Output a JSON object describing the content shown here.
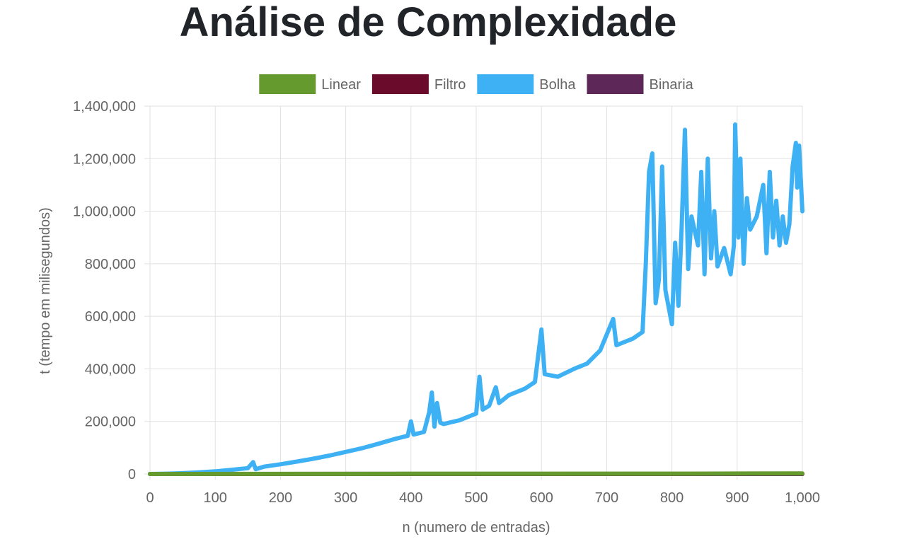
{
  "page": {
    "title": "Análise de Complexidade"
  },
  "chart_data": {
    "type": "line",
    "title": "Análise de Complexidade",
    "xlabel": "n (numero de entradas)",
    "ylabel": "t (tempo em milisegundos)",
    "xlim": [
      0,
      1000
    ],
    "ylim": [
      0,
      1400000
    ],
    "x_ticks": [
      "0",
      "100",
      "200",
      "300",
      "400",
      "500",
      "600",
      "700",
      "800",
      "900",
      "1,000"
    ],
    "y_ticks": [
      "0",
      "200,000",
      "400,000",
      "600,000",
      "800,000",
      "1,000,000",
      "1,200,000",
      "1,400,000"
    ],
    "grid": true,
    "legend_position": "top",
    "series": [
      {
        "name": "Linear",
        "color": "#659a2f",
        "points": [
          [
            0,
            0
          ],
          [
            200,
            300
          ],
          [
            400,
            600
          ],
          [
            600,
            900
          ],
          [
            800,
            1200
          ],
          [
            900,
            1500
          ],
          [
            1000,
            1800
          ]
        ]
      },
      {
        "name": "Filtro",
        "color": "#6a0b2c",
        "points": [
          [
            0,
            0
          ],
          [
            500,
            200
          ],
          [
            1000,
            400
          ]
        ]
      },
      {
        "name": "Bolha",
        "color": "#3eb1f4",
        "points": [
          [
            0,
            0
          ],
          [
            25,
            1000
          ],
          [
            50,
            3000
          ],
          [
            75,
            6000
          ],
          [
            100,
            10000
          ],
          [
            125,
            16000
          ],
          [
            150,
            22000
          ],
          [
            158,
            45000
          ],
          [
            162,
            18000
          ],
          [
            175,
            28000
          ],
          [
            200,
            37000
          ],
          [
            225,
            47000
          ],
          [
            250,
            58000
          ],
          [
            275,
            70000
          ],
          [
            300,
            84000
          ],
          [
            325,
            98000
          ],
          [
            350,
            115000
          ],
          [
            375,
            133000
          ],
          [
            395,
            145000
          ],
          [
            400,
            200000
          ],
          [
            404,
            150000
          ],
          [
            420,
            160000
          ],
          [
            428,
            235000
          ],
          [
            432,
            310000
          ],
          [
            436,
            180000
          ],
          [
            440,
            270000
          ],
          [
            445,
            195000
          ],
          [
            450,
            190000
          ],
          [
            475,
            205000
          ],
          [
            500,
            230000
          ],
          [
            505,
            370000
          ],
          [
            510,
            245000
          ],
          [
            520,
            260000
          ],
          [
            530,
            330000
          ],
          [
            535,
            270000
          ],
          [
            550,
            300000
          ],
          [
            575,
            325000
          ],
          [
            590,
            350000
          ],
          [
            600,
            550000
          ],
          [
            605,
            380000
          ],
          [
            625,
            370000
          ],
          [
            650,
            400000
          ],
          [
            670,
            420000
          ],
          [
            690,
            470000
          ],
          [
            710,
            590000
          ],
          [
            715,
            490000
          ],
          [
            740,
            515000
          ],
          [
            755,
            540000
          ],
          [
            760,
            800000
          ],
          [
            765,
            1150000
          ],
          [
            770,
            1220000
          ],
          [
            775,
            650000
          ],
          [
            780,
            740000
          ],
          [
            785,
            1170000
          ],
          [
            790,
            700000
          ],
          [
            800,
            570000
          ],
          [
            805,
            880000
          ],
          [
            810,
            640000
          ],
          [
            815,
            940000
          ],
          [
            820,
            1310000
          ],
          [
            825,
            780000
          ],
          [
            830,
            980000
          ],
          [
            840,
            870000
          ],
          [
            845,
            1150000
          ],
          [
            850,
            760000
          ],
          [
            855,
            1200000
          ],
          [
            860,
            820000
          ],
          [
            865,
            1000000
          ],
          [
            870,
            790000
          ],
          [
            880,
            860000
          ],
          [
            890,
            760000
          ],
          [
            895,
            870000
          ],
          [
            897,
            1330000
          ],
          [
            902,
            900000
          ],
          [
            905,
            1200000
          ],
          [
            910,
            800000
          ],
          [
            915,
            1050000
          ],
          [
            920,
            930000
          ],
          [
            930,
            980000
          ],
          [
            940,
            1100000
          ],
          [
            945,
            840000
          ],
          [
            950,
            1150000
          ],
          [
            955,
            900000
          ],
          [
            960,
            1040000
          ],
          [
            965,
            870000
          ],
          [
            970,
            980000
          ],
          [
            975,
            880000
          ],
          [
            980,
            950000
          ],
          [
            985,
            1170000
          ],
          [
            990,
            1260000
          ],
          [
            992,
            1090000
          ],
          [
            995,
            1250000
          ],
          [
            1000,
            1000000
          ]
        ]
      },
      {
        "name": "Binaria",
        "color": "#5d2858",
        "points": [
          [
            0,
            0
          ],
          [
            1000,
            50
          ]
        ]
      }
    ]
  }
}
